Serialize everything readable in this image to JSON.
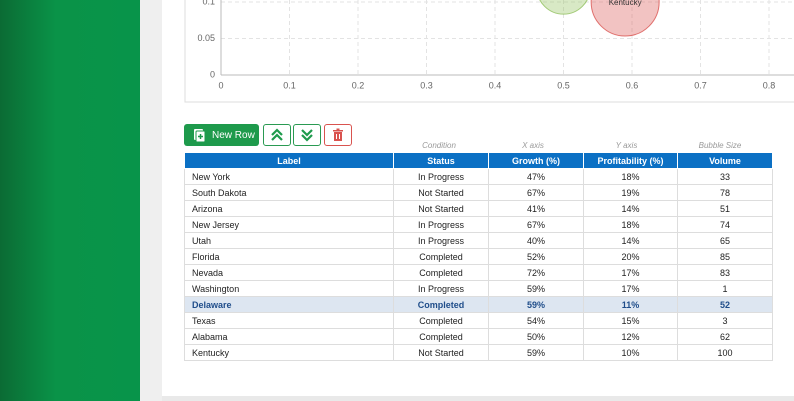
{
  "chart": {
    "type": "bubble",
    "xlim": [
      0,
      0.8365
    ],
    "xticks": [
      0,
      0.1,
      0.2,
      0.3,
      0.4,
      0.5,
      0.6,
      0.7,
      0.8
    ],
    "ylim": [
      0,
      0.1
    ],
    "yticks": [
      0,
      0.05,
      0.1
    ],
    "grid": true,
    "points": [
      {
        "x": 0.5,
        "y": 0.12,
        "size": 62,
        "color": "#8fbf5a"
      },
      {
        "x": 0.59,
        "y": 0.1,
        "size": 100,
        "color": "#d9534f",
        "label": "Kentucky"
      }
    ]
  },
  "toolbar": {
    "new_row": "New Row"
  },
  "table": {
    "columns": [
      {
        "header": "Label"
      },
      {
        "header": "Status",
        "hint": "Condition"
      },
      {
        "header": "Growth (%)",
        "hint": "X axis"
      },
      {
        "header": "Profitability (%)",
        "hint": "Y axis"
      },
      {
        "header": "Volume",
        "hint": "Bubble Size"
      }
    ],
    "selected_row": 8,
    "rows": [
      [
        "New York",
        "In Progress",
        "47%",
        "18%",
        "33"
      ],
      [
        "South Dakota",
        "Not Started",
        "67%",
        "19%",
        "78"
      ],
      [
        "Arizona",
        "Not Started",
        "41%",
        "14%",
        "51"
      ],
      [
        "New Jersey",
        "In Progress",
        "67%",
        "18%",
        "74"
      ],
      [
        "Utah",
        "In Progress",
        "40%",
        "14%",
        "65"
      ],
      [
        "Florida",
        "Completed",
        "52%",
        "20%",
        "85"
      ],
      [
        "Nevada",
        "Completed",
        "72%",
        "17%",
        "83"
      ],
      [
        "Washington",
        "In Progress",
        "59%",
        "17%",
        "1"
      ],
      [
        "Delaware",
        "Completed",
        "59%",
        "11%",
        "52"
      ],
      [
        "Texas",
        "Completed",
        "54%",
        "15%",
        "3"
      ],
      [
        "Alabama",
        "Completed",
        "50%",
        "12%",
        "62"
      ],
      [
        "Kentucky",
        "Not Started",
        "59%",
        "10%",
        "100"
      ]
    ]
  }
}
